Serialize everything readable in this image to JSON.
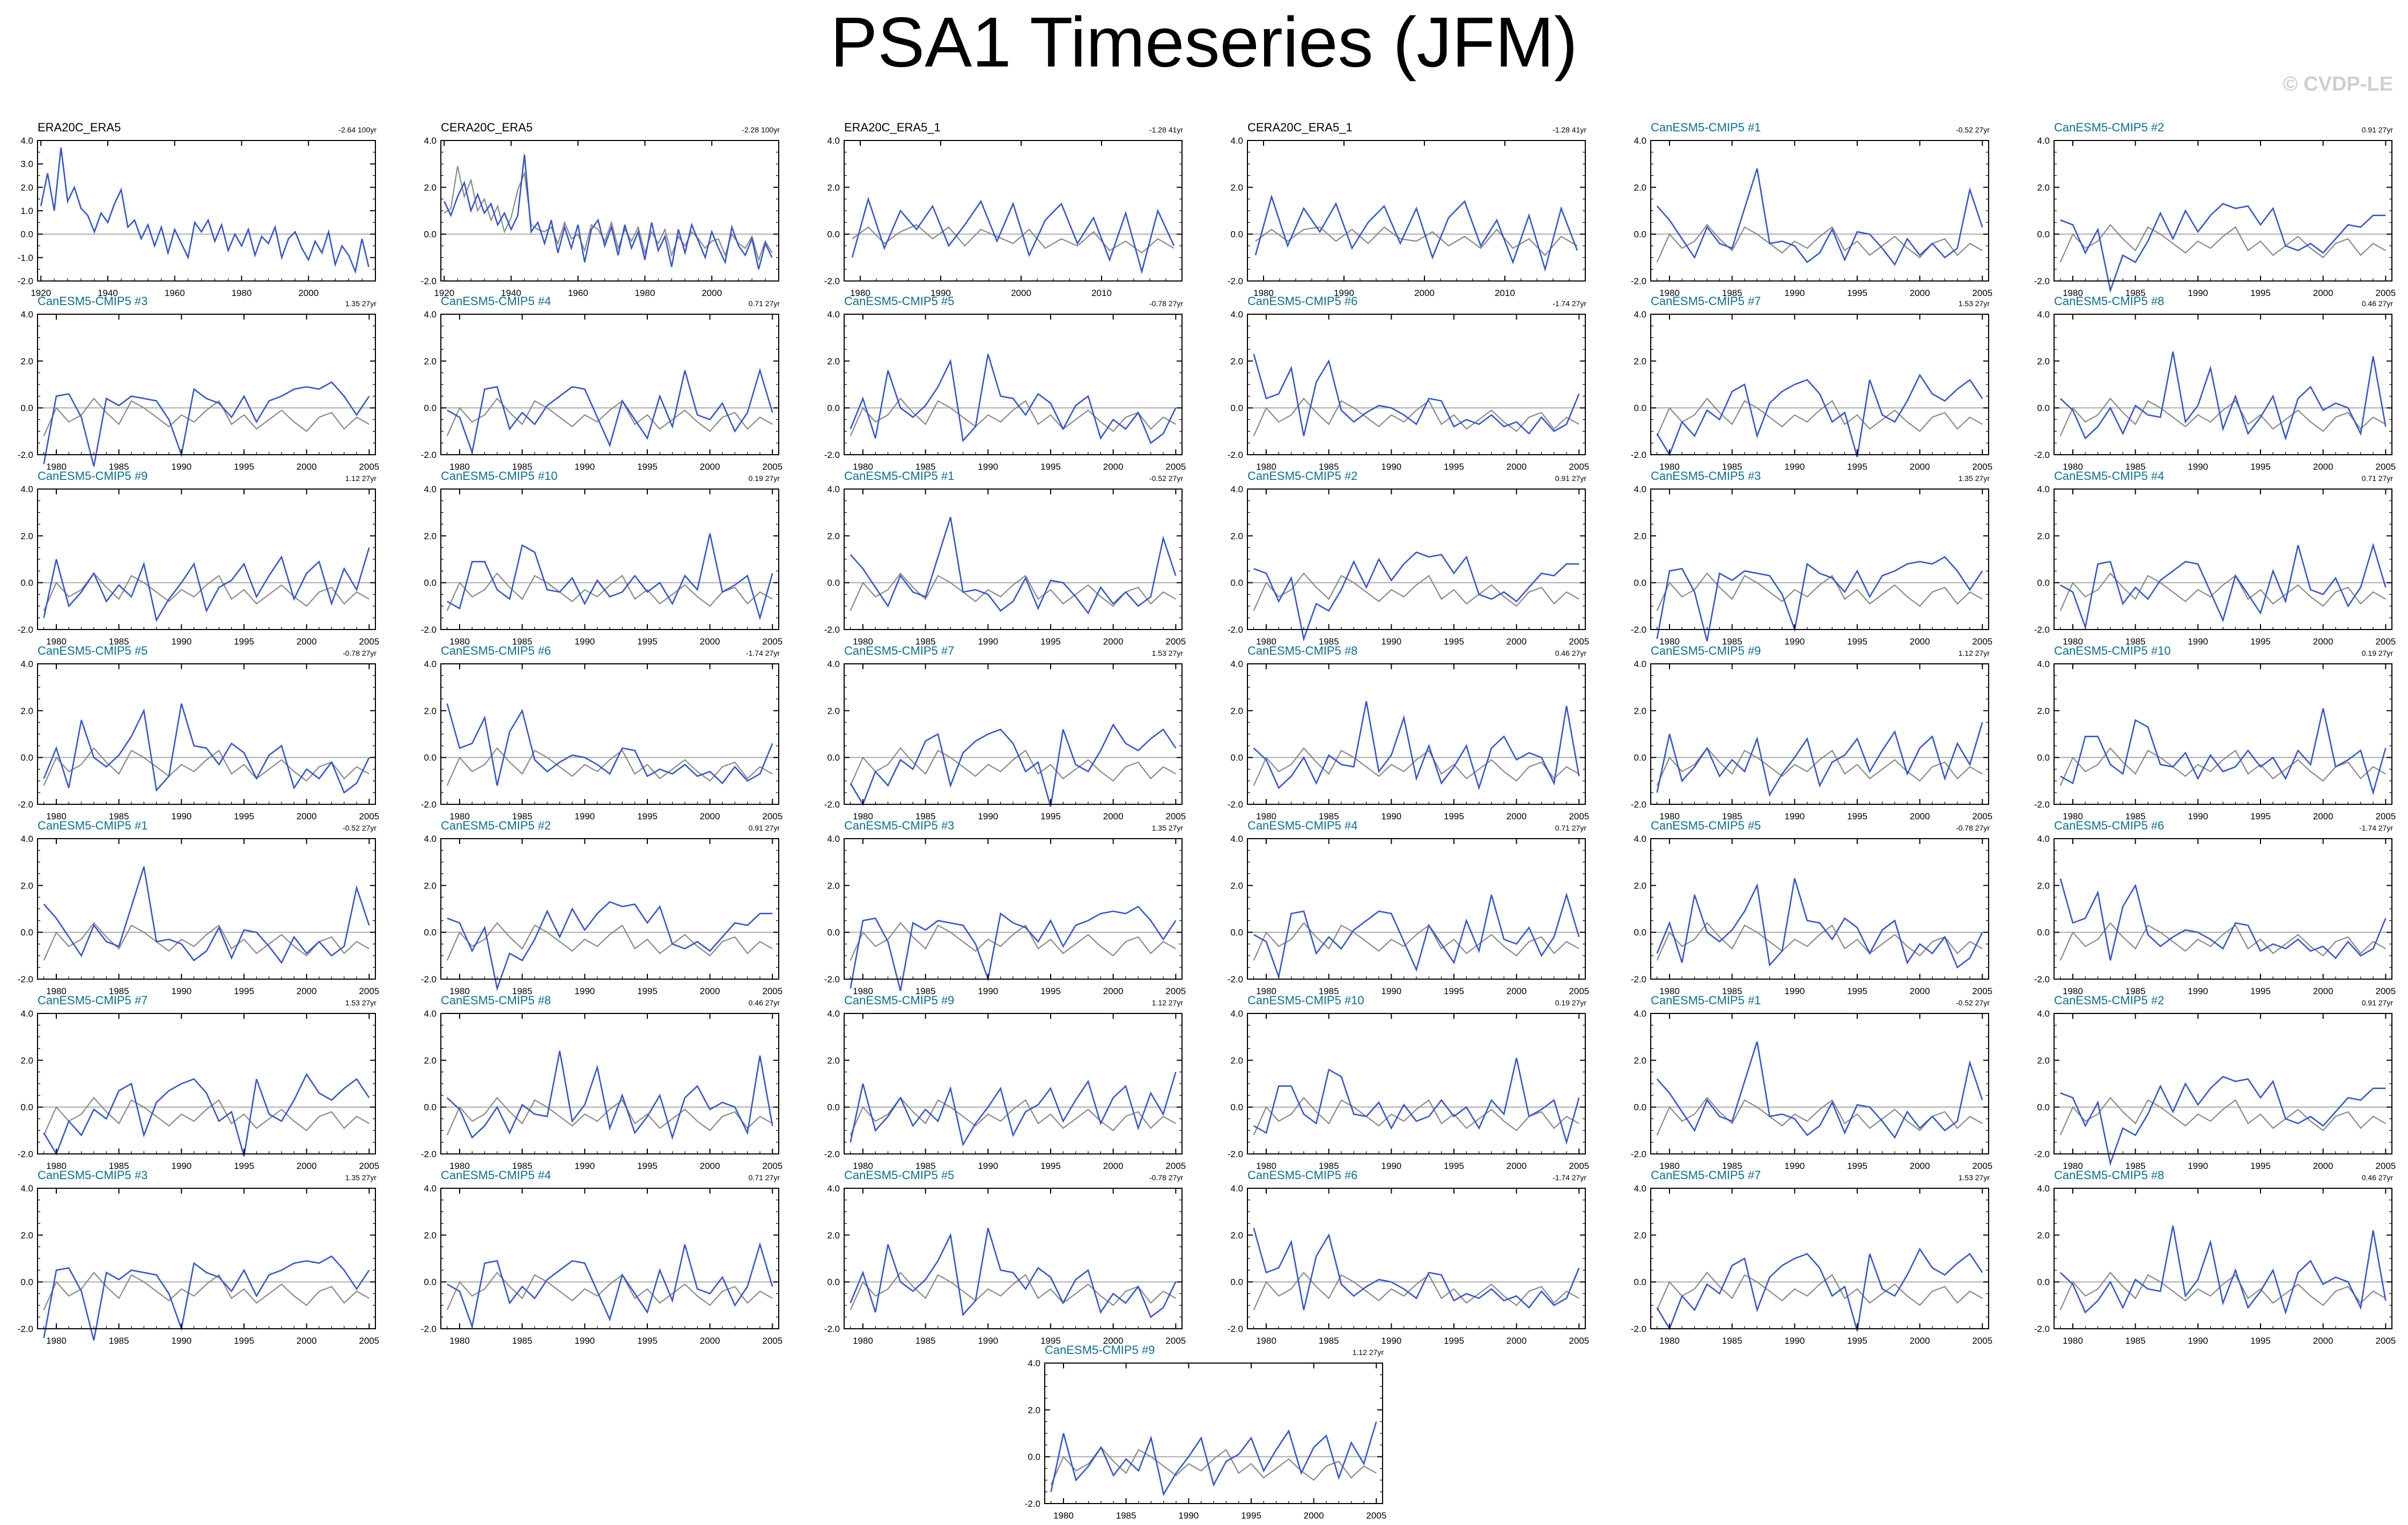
{
  "title": "PSA1 Timeseries (JFM)",
  "watermark": "© CVDP-LE",
  "colors": {
    "model": "#3355cc",
    "observed": "#888888",
    "zero_line": "#aaaaaa",
    "model_title": "#0d6e8f",
    "obs_title": "#000000"
  },
  "chart_data": [
    {
      "type": "line",
      "title": "ERA20C_ERA5",
      "trend": "-2.64 100yr",
      "x": [
        1920,
        1922,
        1924,
        1926,
        1928,
        1930,
        1932,
        1934,
        1936,
        1938,
        1940,
        1942,
        1944,
        1946,
        1948,
        1950,
        1952,
        1954,
        1956,
        1958,
        1960,
        1962,
        1964,
        1966,
        1968,
        1970,
        1972,
        1974,
        1976,
        1978,
        1980,
        1982,
        1984,
        1986,
        1988,
        1990,
        1992,
        1994,
        1996,
        1998,
        2000,
        2002,
        2004,
        2006,
        2008,
        2010,
        2012,
        2014,
        2016,
        2018
      ],
      "series": [
        {
          "values": [
            1.2,
            2.6,
            1.0,
            3.7,
            1.4,
            2.0,
            1.1,
            0.8,
            0.1,
            0.9,
            0.5,
            1.3,
            1.9,
            0.3,
            0.6,
            -0.2,
            0.4,
            -0.5,
            0.3,
            -0.8,
            0.2,
            -0.4,
            -1.0,
            0.5,
            0.1,
            0.6,
            -0.3,
            0.4,
            -0.7,
            0.0,
            -0.5,
            0.2,
            -0.9,
            -0.1,
            -0.4,
            0.3,
            -1.0,
            -0.2,
            0.1,
            -0.6,
            -1.1,
            -0.3,
            -0.8,
            0.1,
            -1.3,
            -0.5,
            -0.9,
            -1.6,
            -0.2,
            -1.4
          ]
        }
      ],
      "xticks": [
        1920,
        1940,
        1960,
        1980,
        2000
      ],
      "yticks": [
        -2.0,
        -1.0,
        0.0,
        1.0,
        2.0,
        3.0,
        4.0
      ],
      "xlim": [
        1919,
        2020
      ],
      "ylim": [
        -2.0,
        4.0
      ]
    },
    {
      "type": "line",
      "title": "CERA20C_ERA5",
      "trend": "-2.28 100yr",
      "x": [
        1920,
        1922,
        1924,
        1926,
        1928,
        1930,
        1932,
        1934,
        1936,
        1938,
        1940,
        1942,
        1944,
        1946,
        1948,
        1950,
        1952,
        1954,
        1956,
        1958,
        1960,
        1962,
        1964,
        1966,
        1968,
        1970,
        1972,
        1974,
        1976,
        1978,
        1980,
        1982,
        1984,
        1986,
        1988,
        1990,
        1992,
        1994,
        1996,
        1998,
        2000,
        2002,
        2004,
        2006,
        2008,
        2010,
        2012,
        2014,
        2016,
        2018
      ],
      "series": [
        {
          "values": [
            1.4,
            0.8,
            1.6,
            2.2,
            1.0,
            1.7,
            0.9,
            1.3,
            0.4,
            0.9,
            0.2,
            0.8,
            3.4,
            0.1,
            0.5,
            -0.4,
            0.6,
            -0.8,
            0.3,
            -0.6,
            0.4,
            -1.2,
            0.2,
            0.6,
            -0.5,
            0.3,
            -0.9,
            0.4,
            -0.6,
            0.1,
            -1.1,
            0.5,
            -0.7,
            -0.1,
            -1.4,
            0.2,
            -0.8,
            0.4,
            -0.3,
            -1.0,
            0.1,
            -0.6,
            -1.2,
            0.3,
            -0.5,
            -0.9,
            -0.2,
            -1.5,
            -0.4,
            -1.0
          ]
        },
        {
          "values": [
            0.9,
            1.1,
            2.9,
            1.6,
            2.3,
            1.0,
            1.5,
            0.6,
            1.2,
            0.1,
            0.7,
            1.9,
            2.6,
            0.4,
            0.2,
            0.1,
            0.3,
            -0.4,
            0.5,
            -0.2,
            0.0,
            -0.7,
            0.4,
            0.2,
            -0.3,
            0.5,
            -0.6,
            0.2,
            -0.3,
            0.3,
            -0.8,
            0.1,
            -0.4,
            0.2,
            -0.9,
            -0.1,
            -0.5,
            0.1,
            -0.2,
            -0.6,
            -0.3,
            -0.2,
            -0.9,
            0.0,
            -0.4,
            -0.6,
            -0.1,
            -1.1,
            -0.3,
            -0.8
          ]
        }
      ],
      "xticks": [
        1920,
        1940,
        1960,
        1980,
        2000
      ],
      "yticks": [
        -2.0,
        0.0,
        2.0,
        4.0
      ],
      "xlim": [
        1919,
        2020
      ],
      "ylim": [
        -2.0,
        4.0
      ]
    },
    {
      "type": "line",
      "title": "ERA20C_ERA5_1",
      "trend": "-1.28 41yr",
      "x": [
        1979,
        1981,
        1983,
        1985,
        1987,
        1989,
        1991,
        1993,
        1995,
        1997,
        1999,
        2001,
        2003,
        2005,
        2007,
        2009,
        2011,
        2013,
        2015,
        2017,
        2019
      ],
      "series": [
        {
          "values": [
            -1.0,
            1.5,
            -0.6,
            1.0,
            0.2,
            1.2,
            -0.5,
            0.4,
            1.4,
            -0.3,
            1.3,
            -0.9,
            0.6,
            1.3,
            -0.4,
            0.7,
            -1.1,
            0.9,
            -1.6,
            1.0,
            -0.5
          ]
        },
        {
          "values": [
            -0.2,
            0.3,
            -0.4,
            0.1,
            0.4,
            -0.2,
            0.3,
            -0.5,
            0.2,
            -0.1,
            -0.4,
            0.2,
            -0.6,
            -0.2,
            -0.5,
            0.1,
            -0.7,
            -0.3,
            -0.8,
            -0.2,
            -0.6
          ]
        }
      ],
      "xticks": [
        1980,
        1990,
        2000,
        2010
      ],
      "yticks": [
        -2.0,
        0.0,
        2.0,
        4.0
      ],
      "xlim": [
        1978,
        2020
      ],
      "ylim": [
        -2.0,
        4.0
      ]
    },
    {
      "type": "line",
      "title": "CERA20C_ERA5_1",
      "trend": "-1.28 41yr",
      "x": [
        1979,
        1981,
        1983,
        1985,
        1987,
        1989,
        1991,
        1993,
        1995,
        1997,
        1999,
        2001,
        2003,
        2005,
        2007,
        2009,
        2011,
        2013,
        2015,
        2017,
        2019
      ],
      "series": [
        {
          "values": [
            -0.9,
            1.6,
            -0.5,
            1.1,
            0.1,
            1.3,
            -0.6,
            0.5,
            1.2,
            -0.4,
            1.1,
            -1.0,
            0.7,
            1.4,
            -0.5,
            0.6,
            -1.2,
            0.8,
            -1.5,
            1.1,
            -0.7
          ]
        },
        {
          "values": [
            -0.3,
            0.2,
            -0.3,
            0.2,
            0.3,
            -0.3,
            0.2,
            -0.4,
            0.3,
            -0.2,
            -0.3,
            0.1,
            -0.5,
            -0.1,
            -0.6,
            0.2,
            -0.6,
            -0.2,
            -0.9,
            -0.1,
            -0.5
          ]
        }
      ],
      "xticks": [
        1980,
        1990,
        2000,
        2010
      ],
      "yticks": [
        -2.0,
        0.0,
        2.0,
        4.0
      ],
      "xlim": [
        1978,
        2020
      ],
      "ylim": [
        -2.0,
        4.0
      ]
    }
  ],
  "model_panels": {
    "x": [
      1979,
      1980,
      1981,
      1982,
      1983,
      1984,
      1985,
      1986,
      1987,
      1988,
      1989,
      1990,
      1991,
      1992,
      1993,
      1994,
      1995,
      1996,
      1997,
      1998,
      1999,
      2000,
      2001,
      2002,
      2003,
      2004,
      2005
    ],
    "xticks": [
      1980,
      1985,
      1990,
      1995,
      2000,
      2005
    ],
    "yticks": [
      -2.0,
      0.0,
      2.0,
      4.0
    ],
    "xlim": [
      1978.5,
      2005.5
    ],
    "ylim": [
      -2.0,
      4.0
    ],
    "members": [
      {
        "title": "CanESM5-CMIP5 #1",
        "trend": "-0.52 27yr",
        "values": [
          1.2,
          0.6,
          -0.2,
          -1.0,
          0.3,
          -0.4,
          -0.6,
          1.1,
          2.8,
          -0.4,
          -0.3,
          -0.5,
          -1.2,
          -0.8,
          0.2,
          -1.1,
          0.1,
          0.0,
          -0.6,
          -1.3,
          -0.2,
          -0.9,
          -0.4,
          -1.0,
          -0.6,
          1.9,
          0.3
        ]
      },
      {
        "title": "CanESM5-CMIP5 #2",
        "trend": "0.91 27yr",
        "values": [
          0.6,
          0.4,
          -0.8,
          0.2,
          -2.4,
          -0.9,
          -1.2,
          -0.3,
          0.9,
          -0.2,
          1.0,
          0.1,
          0.8,
          1.3,
          1.1,
          1.2,
          0.4,
          1.1,
          -0.5,
          -0.7,
          -0.4,
          -0.8,
          -0.2,
          0.4,
          0.3,
          0.8,
          0.8
        ]
      },
      {
        "title": "CanESM5-CMIP5 #3",
        "trend": "1.35 27yr",
        "values": [
          -2.4,
          0.5,
          0.6,
          -0.4,
          -2.5,
          0.4,
          0.1,
          0.5,
          0.4,
          0.3,
          -0.5,
          -2.0,
          0.8,
          0.4,
          0.2,
          -0.4,
          0.5,
          -0.6,
          0.3,
          0.5,
          0.8,
          0.9,
          0.8,
          1.1,
          0.5,
          -0.3,
          0.5
        ]
      },
      {
        "title": "CanESM5-CMIP5 #4",
        "trend": "0.71 27yr",
        "values": [
          -0.1,
          -0.4,
          -1.9,
          0.8,
          0.9,
          -0.9,
          -0.2,
          -0.7,
          0.1,
          0.5,
          0.9,
          0.8,
          -0.4,
          -1.6,
          0.3,
          -0.5,
          -1.3,
          0.5,
          -0.8,
          1.6,
          -0.3,
          -0.5,
          0.2,
          -1.0,
          -0.2,
          1.6,
          -0.2
        ]
      },
      {
        "title": "CanESM5-CMIP5 #5",
        "trend": "-0.78 27yr",
        "values": [
          -0.9,
          0.4,
          -1.3,
          1.6,
          0.0,
          -0.4,
          0.1,
          0.9,
          2.0,
          -1.4,
          -0.8,
          2.3,
          0.5,
          0.4,
          -0.3,
          0.6,
          0.2,
          -0.9,
          0.1,
          0.5,
          -1.3,
          -0.5,
          -0.9,
          -0.2,
          -1.5,
          -1.1,
          0.0
        ]
      },
      {
        "title": "CanESM5-CMIP5 #6",
        "trend": "-1.74 27yr",
        "values": [
          2.3,
          0.4,
          0.6,
          1.7,
          -1.2,
          1.1,
          2.0,
          -0.1,
          -0.6,
          -0.2,
          0.1,
          0.0,
          -0.3,
          -0.7,
          0.4,
          0.3,
          -0.8,
          -0.5,
          -0.7,
          -0.3,
          -0.8,
          -0.6,
          -1.1,
          -0.4,
          -1.0,
          -0.7,
          0.6
        ]
      },
      {
        "title": "CanESM5-CMIP5 #7",
        "trend": "1.53 27yr",
        "values": [
          -1.1,
          -2.0,
          -0.6,
          -1.2,
          -0.1,
          -0.5,
          0.7,
          1.0,
          -1.2,
          0.2,
          0.7,
          1.0,
          1.2,
          0.6,
          -0.6,
          -0.2,
          -2.1,
          1.2,
          -0.3,
          -0.6,
          0.3,
          1.4,
          0.6,
          0.3,
          0.8,
          1.2,
          0.4
        ]
      },
      {
        "title": "CanESM5-CMIP5 #8",
        "trend": "0.46 27yr",
        "values": [
          0.4,
          -0.1,
          -1.3,
          -0.8,
          0.0,
          -1.1,
          0.1,
          -0.3,
          -0.4,
          2.4,
          -0.6,
          0.1,
          1.7,
          -0.9,
          0.5,
          -1.1,
          -0.4,
          0.5,
          -1.3,
          0.4,
          0.9,
          -0.1,
          0.2,
          0.0,
          -1.1,
          2.2,
          -0.8
        ]
      },
      {
        "title": "CanESM5-CMIP5 #9",
        "trend": "1.12 27yr",
        "values": [
          -1.5,
          1.0,
          -1.0,
          -0.4,
          0.4,
          -0.8,
          -0.1,
          -0.6,
          0.8,
          -1.6,
          -0.7,
          0.0,
          0.8,
          -1.2,
          -0.2,
          0.1,
          0.8,
          -0.6,
          0.3,
          1.1,
          -0.7,
          0.4,
          0.9,
          -0.9,
          0.6,
          -0.3,
          1.5
        ]
      },
      {
        "title": "CanESM5-CMIP5 #10",
        "trend": "0.19 27yr",
        "values": [
          -0.8,
          -1.1,
          0.9,
          0.9,
          -0.3,
          -0.7,
          1.6,
          1.3,
          -0.3,
          -0.4,
          0.2,
          -0.9,
          0.1,
          -0.6,
          -0.4,
          0.3,
          -0.4,
          0.0,
          -0.9,
          0.3,
          -0.3,
          2.1,
          -0.4,
          -0.1,
          0.3,
          -1.5,
          0.4
        ]
      }
    ],
    "observed": [
      -1.2,
      0.0,
      -0.6,
      -0.3,
      0.4,
      -0.2,
      -0.7,
      0.3,
      0.0,
      -0.4,
      -0.8,
      -0.3,
      -0.6,
      -0.1,
      0.3,
      -0.7,
      -0.3,
      -0.9,
      -0.5,
      -0.1,
      -0.6,
      -1.0,
      -0.4,
      -0.2,
      -0.9,
      -0.4,
      -0.7
    ]
  },
  "layout_sequence": [
    0,
    1,
    2,
    3,
    4,
    5,
    6,
    7,
    8,
    9,
    0,
    1,
    2,
    3,
    4,
    5,
    6,
    7,
    8,
    9,
    0,
    1,
    2,
    3,
    4,
    5,
    6,
    7,
    8,
    9,
    0,
    1,
    2,
    3,
    4,
    5,
    6,
    7,
    8
  ]
}
